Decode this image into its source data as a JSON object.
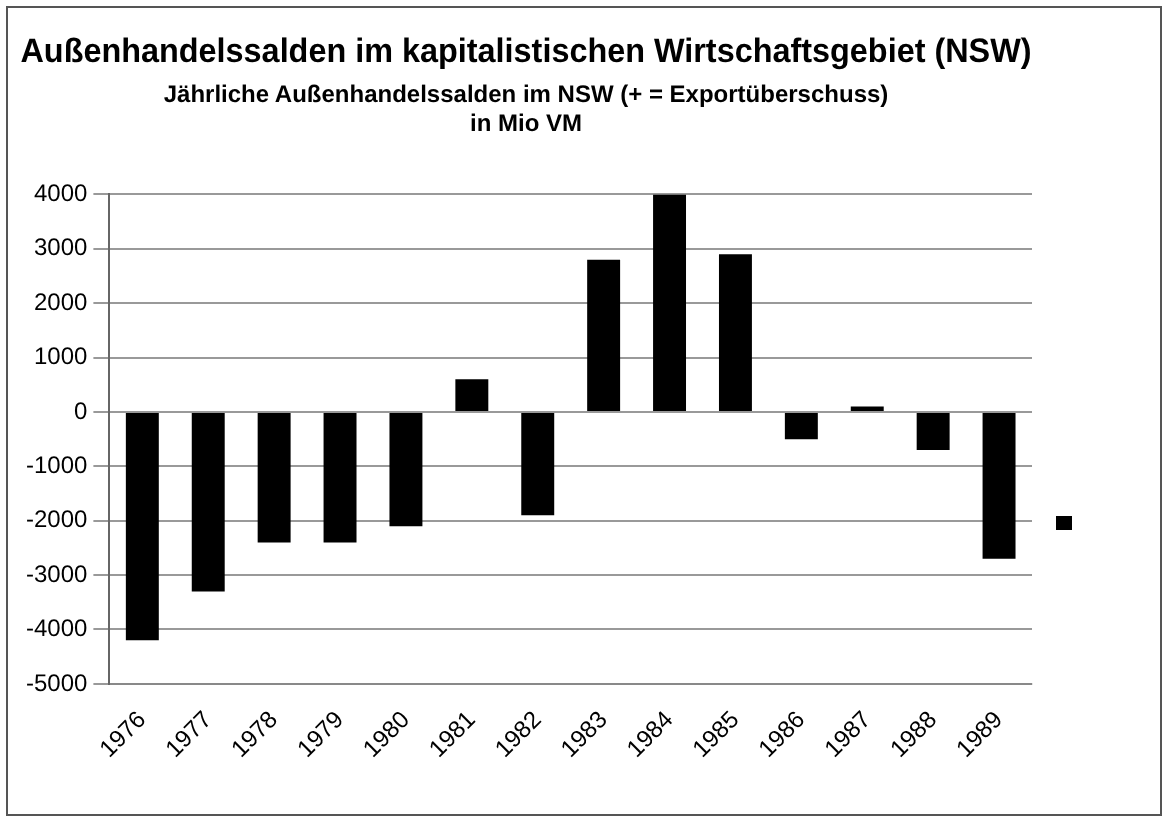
{
  "chart_data": {
    "type": "bar",
    "title": "Außenhandelssalden im kapitalistischen Wirtschaftsgebiet (NSW)",
    "subtitle": "Jährliche Außenhandelssalden im NSW (+ = Exportüberschuss)\nin Mio VM",
    "categories": [
      "1976",
      "1977",
      "1978",
      "1979",
      "1980",
      "1981",
      "1982",
      "1983",
      "1984",
      "1985",
      "1986",
      "1987",
      "1988",
      "1989"
    ],
    "values": [
      -4200,
      -3300,
      -2400,
      -2400,
      -2100,
      600,
      -1900,
      2800,
      4000,
      2900,
      -500,
      100,
      -700,
      -2700
    ],
    "color": "#000000",
    "ylim": [
      -5000,
      4000
    ],
    "yticks": [
      -5000,
      -4000,
      -3000,
      -2000,
      -1000,
      0,
      1000,
      2000,
      3000,
      4000
    ],
    "grid": "y"
  }
}
